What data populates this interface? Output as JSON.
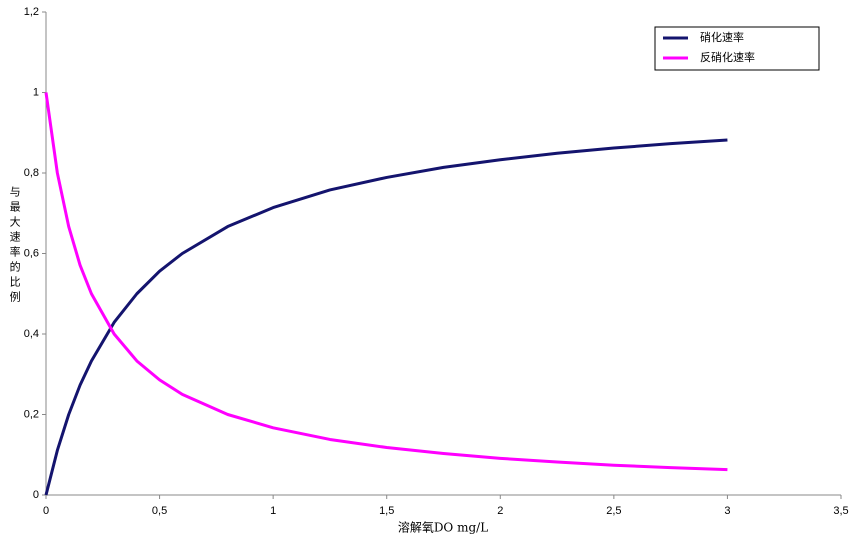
{
  "chart_data": {
    "type": "line",
    "x_label": "溶解氧DO mg/L",
    "y_label": "与最大速率的比例",
    "x": [
      0,
      0.05,
      0.1,
      0.15,
      0.2,
      0.3,
      0.4,
      0.5,
      0.6,
      0.8,
      1,
      1.25,
      1.5,
      1.75,
      2,
      2.25,
      2.5,
      2.75,
      3
    ],
    "series": [
      {
        "name": "硝化速率",
        "color": "#14146e",
        "values": [
          0,
          0.111,
          0.2,
          0.273,
          0.333,
          0.429,
          0.5,
          0.556,
          0.6,
          0.667,
          0.714,
          0.758,
          0.789,
          0.814,
          0.833,
          0.849,
          0.862,
          0.873,
          0.882
        ]
      },
      {
        "name": "反硝化速率",
        "color": "#ff00ff",
        "values": [
          1,
          0.8,
          0.667,
          0.571,
          0.5,
          0.4,
          0.333,
          0.286,
          0.25,
          0.2,
          0.167,
          0.138,
          0.118,
          0.103,
          0.091,
          0.082,
          0.074,
          0.068,
          0.063
        ]
      }
    ],
    "xlim": [
      0,
      3.5
    ],
    "xticks": [
      0,
      {
        "value": 0.5,
        "label": "0,5"
      },
      1,
      {
        "value": 1.5,
        "label": "1,5"
      },
      2,
      {
        "value": 2.5,
        "label": "2,5"
      },
      3,
      {
        "value": 3.5,
        "label": "3,5"
      }
    ],
    "ylim": [
      0,
      1.2
    ],
    "yticks": [
      0,
      {
        "value": 0.2,
        "label": "0,2"
      },
      {
        "value": 0.4,
        "label": "0,4"
      },
      {
        "value": 0.6,
        "label": "0,6"
      },
      {
        "value": 0.8,
        "label": "0,8"
      },
      1,
      {
        "value": 1.2,
        "label": "1,2"
      }
    ],
    "grid": false,
    "legend": "top-right"
  }
}
